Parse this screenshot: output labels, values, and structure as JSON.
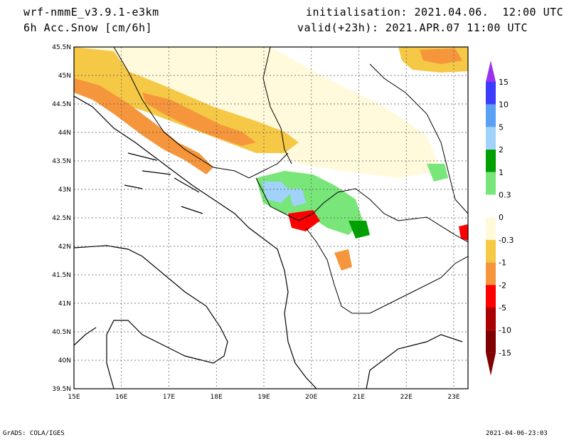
{
  "header": {
    "model": "wrf-nmmE_v3.9.1-e3km",
    "field": "6h Acc.Snow [cm/6h]",
    "initialisation": "initialisation: 2021.04.06.  12:00 UTC",
    "valid": "valid(+23h): 2021.APR.07 11:00 UTC"
  },
  "map": {
    "lon_range": [
      15,
      23.3
    ],
    "lat_range": [
      39.5,
      45.5
    ],
    "lon_ticks": [
      "15E",
      "16E",
      "17E",
      "18E",
      "19E",
      "20E",
      "21E",
      "22E",
      "23E"
    ],
    "lat_ticks": [
      "39.5N",
      "40N",
      "40.5N",
      "41N",
      "41.5N",
      "42N",
      "42.5N",
      "43N",
      "43.5N",
      "44N",
      "44.5N",
      "45N",
      "45.5N"
    ]
  },
  "colorbar": {
    "labels": [
      "15",
      "10",
      "5",
      "2",
      "1",
      "0.3",
      "0",
      "-0.3",
      "-1",
      "-2",
      "-5",
      "-10",
      "-15"
    ],
    "colors": [
      "#9a32f0",
      "#3c3cff",
      "#5aa0f5",
      "#a0d2fa",
      "#00a000",
      "#78e678",
      "#ffffff",
      "#fffadc",
      "#f5c846",
      "#f5963c",
      "#ff0000",
      "#aa0000",
      "#800000"
    ]
  },
  "footer": {
    "left": "GrADS: COLA/IGES",
    "right": "2021-04-06-23:03"
  }
}
